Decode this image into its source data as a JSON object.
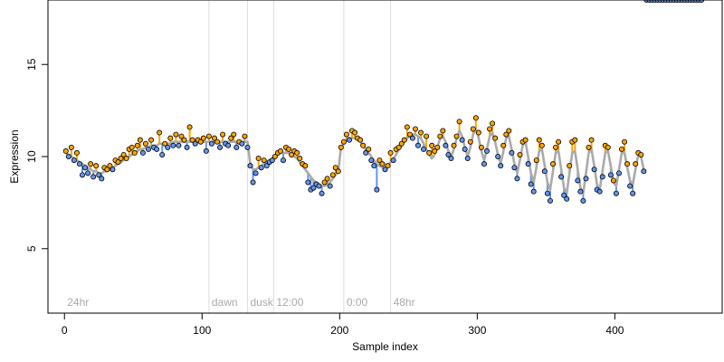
{
  "chart_data": {
    "type": "scatter",
    "title": "",
    "xlabel": "Sample index",
    "ylabel": "Expression",
    "xlim": [
      -12,
      478
    ],
    "ylim": [
      1.5,
      18.5
    ],
    "x_ticks": [
      0,
      100,
      200,
      300,
      400
    ],
    "y_ticks": [
      5,
      10,
      15
    ],
    "x_tick_labels": [
      "0",
      "100",
      "200",
      "300",
      "400"
    ],
    "y_tick_labels": [
      "5",
      "10",
      "15"
    ],
    "grid": false,
    "legend": "none",
    "phase_markers": [
      {
        "label": "24hr",
        "x": 0,
        "line": false
      },
      {
        "label": "dawn",
        "x": 105,
        "line": true
      },
      {
        "label": "dusk",
        "x": 133,
        "line": true
      },
      {
        "label": "12:00",
        "x": 152,
        "line": true
      },
      {
        "label": "0:00",
        "x": 203,
        "line": true
      },
      {
        "label": "48hr",
        "x": 237,
        "line": true
      }
    ],
    "colors": {
      "fitted_line": "#aaaaaa",
      "residual_positive": "#ffa500",
      "residual_negative": "#6495ed",
      "marker_line": "#dddddd",
      "point_edge": "#000000"
    },
    "series": [
      {
        "x": [
          1,
          3,
          5,
          7,
          9,
          11,
          13,
          15,
          17,
          19,
          21,
          23,
          25,
          27,
          29,
          31,
          33,
          35,
          37,
          39,
          41,
          43,
          45,
          47,
          49,
          51,
          53,
          55,
          57,
          59,
          61,
          63,
          65,
          67,
          69,
          71,
          73,
          75,
          77,
          79,
          81,
          83,
          85,
          87,
          89,
          91,
          93,
          95,
          97,
          99,
          101,
          103,
          105,
          107,
          109,
          111,
          113,
          115,
          117,
          119,
          121,
          123,
          125,
          127,
          129,
          131,
          133,
          135,
          137,
          139,
          141,
          143,
          145,
          147,
          149,
          151,
          153,
          155,
          157,
          159,
          161,
          163,
          165,
          167,
          169,
          171,
          173,
          175,
          177,
          179,
          181,
          183,
          185,
          187,
          189,
          191,
          193,
          195,
          197,
          199,
          201,
          203,
          205,
          207,
          209,
          211,
          213,
          215,
          217,
          219,
          221,
          223,
          225,
          227,
          229,
          231,
          233,
          235,
          237,
          239,
          241,
          243,
          245,
          247,
          249,
          251,
          253,
          255,
          257,
          259,
          261,
          263,
          265,
          267,
          269,
          271,
          273,
          275,
          277,
          279,
          281,
          283,
          285,
          287,
          289,
          291,
          293,
          295,
          297,
          299,
          301,
          303,
          305,
          307,
          309,
          311,
          313,
          315,
          317,
          319,
          321,
          323,
          325,
          327,
          329,
          331,
          333,
          335,
          337,
          339,
          341,
          343,
          345,
          347,
          349,
          351,
          353,
          355,
          357,
          359,
          361,
          363,
          365,
          367,
          369,
          371,
          373,
          375,
          377,
          379,
          381,
          383,
          385,
          387,
          389,
          391,
          393,
          395,
          397,
          399,
          401,
          403,
          405,
          407,
          409,
          411,
          413,
          415,
          417,
          419,
          421,
          423,
          425,
          427,
          429,
          431,
          433,
          435,
          437,
          439,
          441,
          443,
          445,
          447,
          449,
          451,
          453,
          455,
          457,
          459,
          461,
          463
        ],
        "fitted": [
          10.2,
          10.1,
          10.0,
          9.9,
          9.8,
          9.7,
          9.6,
          9.5,
          9.4,
          9.3,
          9.2,
          9.2,
          9.1,
          9.1,
          9.2,
          9.2,
          9.3,
          9.4,
          9.5,
          9.6,
          9.7,
          9.8,
          9.9,
          10.0,
          10.1,
          10.2,
          10.3,
          10.4,
          10.4,
          10.5,
          10.5,
          10.6,
          10.6,
          10.6,
          10.7,
          10.7,
          10.7,
          10.7,
          10.7,
          10.8,
          10.8,
          10.8,
          10.8,
          10.8,
          10.8,
          10.8,
          10.8,
          10.8,
          10.8,
          10.8,
          10.8,
          10.8,
          10.8,
          10.8,
          10.8,
          10.8,
          10.8,
          10.8,
          10.8,
          10.8,
          10.8,
          10.8,
          10.8,
          10.8,
          10.8,
          10.8,
          10.8,
          9.6,
          9.3,
          9.3,
          9.4,
          9.5,
          9.6,
          9.7,
          9.8,
          9.9,
          10.0,
          10.1,
          10.2,
          10.2,
          10.2,
          10.2,
          10.1,
          10.0,
          9.9,
          9.7,
          9.5,
          9.3,
          9.1,
          8.9,
          8.7,
          8.6,
          8.5,
          8.4,
          8.4,
          8.5,
          8.6,
          8.8,
          9.0,
          9.2,
          10.5,
          10.7,
          10.9,
          11.0,
          11.0,
          11.0,
          10.9,
          10.8,
          10.6,
          10.4,
          10.2,
          10.0,
          9.8,
          9.6,
          9.5,
          9.4,
          9.4,
          9.5,
          9.7,
          9.9,
          10.1,
          10.4,
          10.6,
          10.8,
          11.0,
          11.1,
          11.2,
          11.2,
          11.1,
          11.0,
          10.7,
          10.4,
          10.1,
          9.9,
          10.1,
          10.5,
          11.0,
          11.1,
          10.8,
          10.3,
          10.0,
          10.4,
          11.0,
          11.4,
          11.1,
          10.5,
          10.0,
          10.5,
          11.2,
          11.5,
          11.0,
          10.3,
          9.8,
          10.4,
          11.1,
          11.3,
          10.8,
          10.1,
          9.6,
          10.3,
          11.0,
          11.1,
          10.4,
          9.6,
          9.1,
          9.8,
          10.6,
          10.8,
          10.0,
          9.1,
          8.6,
          9.4,
          10.3,
          10.4,
          9.5,
          8.6,
          8.2,
          9.2,
          10.2,
          10.3,
          9.3,
          8.3,
          8.0,
          9.1,
          10.2,
          10.3,
          9.3,
          8.3,
          8.0,
          9.1,
          10.2,
          10.4,
          9.5,
          8.5,
          8.2,
          9.2,
          10.2,
          10.3,
          9.5,
          8.6,
          8.4,
          9.3,
          10.2,
          10.2,
          9.4,
          8.7,
          8.5,
          9.3,
          10.1,
          10.0,
          9.3
        ],
        "observed": [
          10.3,
          10.0,
          10.5,
          9.8,
          10.2,
          9.6,
          9.0,
          9.4,
          9.1,
          9.6,
          8.9,
          9.5,
          9.0,
          8.8,
          9.4,
          9.3,
          9.5,
          9.3,
          9.8,
          9.7,
          9.9,
          10.1,
          9.9,
          10.4,
          10.5,
          10.2,
          10.6,
          10.9,
          10.2,
          10.7,
          10.4,
          10.9,
          10.5,
          10.4,
          11.3,
          10.1,
          10.7,
          10.5,
          11.0,
          10.6,
          11.2,
          10.6,
          11.1,
          10.9,
          10.5,
          11.6,
          10.9,
          10.7,
          10.9,
          10.8,
          11.0,
          10.3,
          11.1,
          10.7,
          11.0,
          10.8,
          10.5,
          11.2,
          10.7,
          10.6,
          11.0,
          11.2,
          10.5,
          10.8,
          10.7,
          11.1,
          10.5,
          9.5,
          8.6,
          9.1,
          9.9,
          9.4,
          9.8,
          9.5,
          9.7,
          9.8,
          10.0,
          10.2,
          10.3,
          9.8,
          10.5,
          10.4,
          10.1,
          10.3,
          10.2,
          9.9,
          9.6,
          9.5,
          8.6,
          8.2,
          8.3,
          8.5,
          8.4,
          8.0,
          8.6,
          8.8,
          8.4,
          9.0,
          9.4,
          9.2,
          10.5,
          10.8,
          11.2,
          10.9,
          11.4,
          11.3,
          11.0,
          10.9,
          10.6,
          10.2,
          10.4,
          9.8,
          9.5,
          8.2,
          9.8,
          9.6,
          9.3,
          9.5,
          10.2,
          9.8,
          10.4,
          10.5,
          10.7,
          10.9,
          11.6,
          11.2,
          11.0,
          11.5,
          10.6,
          11.3,
          10.4,
          11.1,
          10.2,
          10.6,
          10.3,
          10.5,
          11.1,
          11.4,
          10.6,
          10.1,
          9.9,
          10.6,
          11.1,
          11.9,
          10.9,
          10.4,
          9.9,
          10.8,
          11.5,
          12.1,
          11.3,
          10.5,
          9.6,
          10.3,
          11.5,
          11.8,
          11.0,
          10.0,
          9.5,
          10.6,
          11.2,
          11.4,
          10.2,
          9.4,
          8.8,
          10.1,
          10.8,
          10.9,
          9.6,
          8.5,
          8.1,
          9.8,
          10.9,
          10.6,
          9.2,
          8.0,
          7.6,
          9.6,
          10.5,
          10.8,
          8.9,
          7.9,
          7.7,
          9.5,
          10.8,
          10.9,
          8.7,
          8.1,
          7.6,
          8.8,
          10.5,
          10.9,
          9.3,
          8.2,
          8.1,
          8.9,
          10.6,
          10.5,
          9.0,
          8.7,
          8.0,
          9.1,
          10.4,
          10.8,
          9.6,
          8.4,
          8.0,
          9.6,
          10.2,
          10.1,
          9.2
        ]
      }
    ]
  }
}
